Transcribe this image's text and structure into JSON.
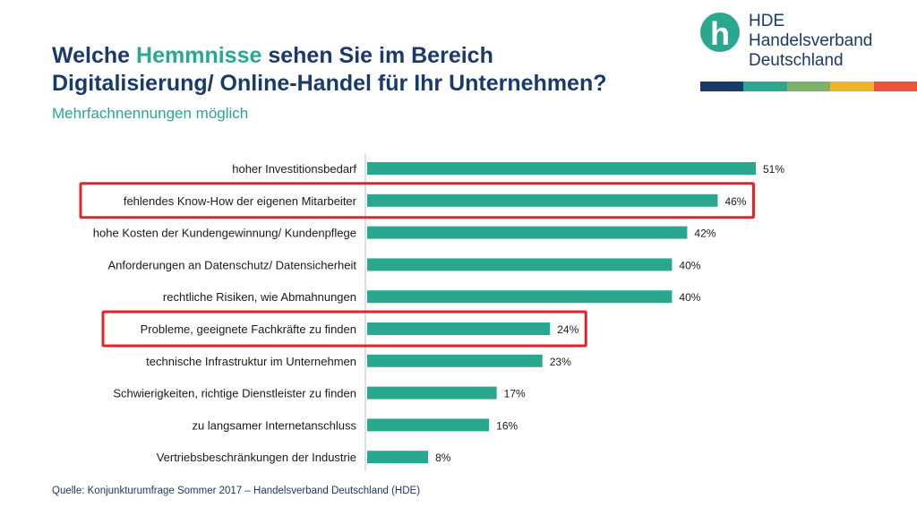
{
  "header": {
    "title_line1_pre": "Welche ",
    "title_highlight": "Hemmnisse",
    "title_line1_post": " sehen Sie im Bereich",
    "title_line2": "Digitalisierung/ Online-Handel für Ihr Unternehmen?",
    "subtitle": "Mehrfachnennungen möglich"
  },
  "logo": {
    "letter": "h",
    "line1": "HDE",
    "line2": "Handelsverband",
    "line3": "Deutschland",
    "icon": "hde-logo-icon",
    "stripe_colors": [
      "#1a3a6b",
      "#2aa88f",
      "#7fb069",
      "#f0b429",
      "#e8553a"
    ]
  },
  "chart_data": {
    "type": "bar",
    "orientation": "horizontal",
    "title": "Welche Hemmnisse sehen Sie im Bereich Digitalisierung/ Online-Handel für Ihr Unternehmen?",
    "xlabel": "",
    "ylabel": "",
    "xlim": [
      0,
      51
    ],
    "grid": false,
    "bar_color": "#2aa88f",
    "highlight_color": "#e8202a",
    "categories": [
      "hoher Investitionsbedarf",
      "fehlendes Know-How der eigenen Mitarbeiter",
      "hohe Kosten der Kundengewinnung/ Kundenpflege",
      "Anforderungen an Datenschutz/ Datensicherheit",
      "rechtliche Risiken, wie Abmahnungen",
      "Probleme, geeignete Fachkräfte zu finden",
      "technische Infrastruktur im Unternehmen",
      "Schwierigkeiten, richtige Dienstleister zu finden",
      "zu langsamer Internetanschluss",
      "Vertriebsbeschränkungen der Industrie"
    ],
    "values": [
      51,
      46,
      42,
      40,
      40,
      24,
      23,
      17,
      16,
      8
    ],
    "value_labels": [
      "51%",
      "46%",
      "42%",
      "40%",
      "40%",
      "24%",
      "23%",
      "17%",
      "16%",
      "8%"
    ],
    "highlighted": [
      1,
      5
    ]
  },
  "footer": {
    "source": "Quelle: Konjunkturumfrage Sommer 2017 – Handelsverband Deutschland (HDE)"
  }
}
